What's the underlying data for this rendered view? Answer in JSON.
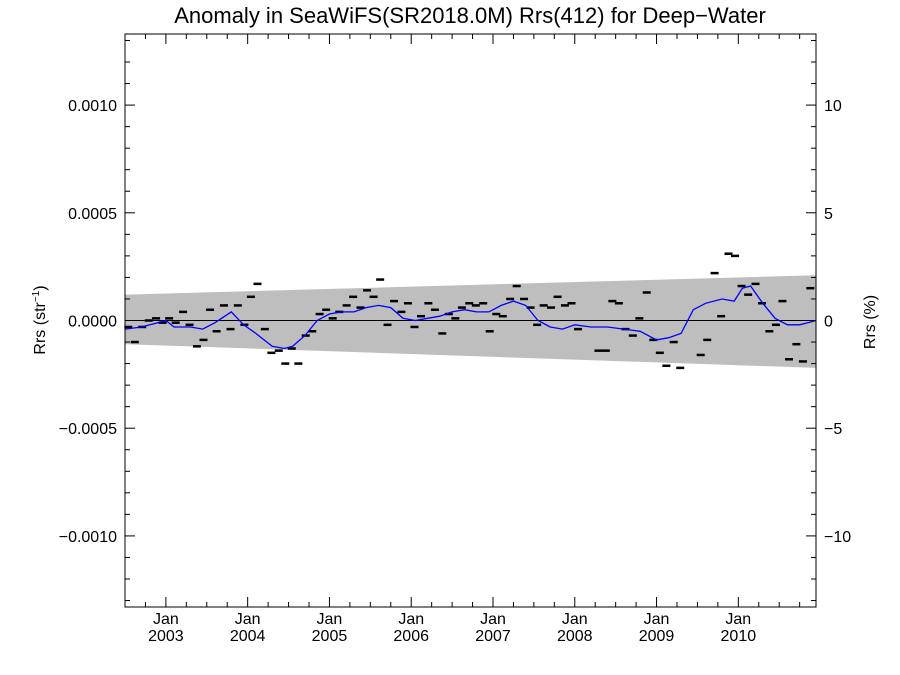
{
  "chart_data": {
    "type": "scatter",
    "title": "Anomaly in SeaWiFS(SR2018.0M) Rrs(412) for Deep−Water",
    "ylabel_left_main": "Rrs (str",
    "ylabel_left_sup": "−1",
    "ylabel_left_close": ")",
    "ylabel_right": "Rrs (%)",
    "x_start": 2002.5,
    "x_end": 2010.95,
    "ylim": [
      -0.00133,
      0.00133
    ],
    "y2lim": [
      -13.3,
      13.3
    ],
    "left_ticks": [
      {
        "value": 0.001,
        "label": "0.0010"
      },
      {
        "value": 0.0005,
        "label": "0.0005"
      },
      {
        "value": 0.0,
        "label": "0.0000"
      },
      {
        "value": -0.0005,
        "label": "−0.0005"
      },
      {
        "value": -0.001,
        "label": "−0.0010"
      }
    ],
    "right_ticks": [
      {
        "value": 10,
        "label": "10"
      },
      {
        "value": 5,
        "label": "5"
      },
      {
        "value": 0,
        "label": "0"
      },
      {
        "value": -5,
        "label": "−5"
      },
      {
        "value": -10,
        "label": "−10"
      }
    ],
    "x_ticks": [
      {
        "value": 2003.0,
        "month": "Jan",
        "year": "2003"
      },
      {
        "value": 2004.0,
        "month": "Jan",
        "year": "2004"
      },
      {
        "value": 2005.0,
        "month": "Jan",
        "year": "2005"
      },
      {
        "value": 2006.0,
        "month": "Jan",
        "year": "2006"
      },
      {
        "value": 2007.0,
        "month": "Jan",
        "year": "2007"
      },
      {
        "value": 2008.0,
        "month": "Jan",
        "year": "2008"
      },
      {
        "value": 2009.0,
        "month": "Jan",
        "year": "2009"
      },
      {
        "value": 2010.0,
        "month": "Jan",
        "year": "2010"
      }
    ],
    "band": {
      "x": [
        2002.5,
        2010.95
      ],
      "upper": [
        0.00012,
        0.00021
      ],
      "lower": [
        -0.00011,
        -0.00022
      ]
    },
    "points": {
      "name": "monthly anomaly",
      "x": [
        2002.54,
        2002.62,
        2002.71,
        2002.79,
        2002.88,
        2002.96,
        2003.04,
        2003.12,
        2003.21,
        2003.29,
        2003.38,
        2003.46,
        2003.54,
        2003.62,
        2003.71,
        2003.79,
        2003.88,
        2003.96,
        2004.04,
        2004.12,
        2004.21,
        2004.29,
        2004.38,
        2004.46,
        2004.54,
        2004.62,
        2004.71,
        2004.79,
        2004.88,
        2004.96,
        2005.04,
        2005.12,
        2005.21,
        2005.29,
        2005.38,
        2005.46,
        2005.54,
        2005.62,
        2005.71,
        2005.79,
        2005.88,
        2005.96,
        2006.04,
        2006.12,
        2006.21,
        2006.29,
        2006.38,
        2006.46,
        2006.54,
        2006.62,
        2006.71,
        2006.79,
        2006.88,
        2006.96,
        2007.04,
        2007.12,
        2007.21,
        2007.29,
        2007.38,
        2007.46,
        2007.54,
        2007.62,
        2007.71,
        2007.79,
        2007.88,
        2007.96,
        2008.04,
        2008.29,
        2008.38,
        2008.46,
        2008.54,
        2008.62,
        2008.71,
        2008.79,
        2008.88,
        2008.96,
        2009.04,
        2009.12,
        2009.21,
        2009.29,
        2009.54,
        2009.62,
        2009.71,
        2009.79,
        2009.88,
        2009.96,
        2010.04,
        2010.12,
        2010.21,
        2010.29,
        2010.38,
        2010.46,
        2010.54,
        2010.62,
        2010.71,
        2010.79,
        2010.88
      ],
      "y": [
        -3e-05,
        -0.0001,
        -3e-05,
        0.0,
        1e-05,
        -1e-05,
        1e-05,
        -1e-05,
        4e-05,
        -2e-05,
        -0.00012,
        -9e-05,
        5e-05,
        -5e-05,
        7e-05,
        -4e-05,
        7e-05,
        -2e-05,
        0.00011,
        0.00017,
        -4e-05,
        -0.00015,
        -0.00014,
        -0.0002,
        -0.00013,
        -0.0002,
        -7e-05,
        -5e-05,
        3e-05,
        5e-05,
        1e-05,
        4e-05,
        7e-05,
        0.00011,
        6e-05,
        0.00014,
        0.00011,
        0.00019,
        -2e-05,
        9e-05,
        4e-05,
        8e-05,
        -3e-05,
        2e-05,
        8e-05,
        5e-05,
        -6e-05,
        3e-05,
        1e-05,
        6e-05,
        8e-05,
        7e-05,
        8e-05,
        -5e-05,
        3e-05,
        2e-05,
        0.0001,
        0.00016,
        0.0001,
        6e-05,
        -2e-05,
        7e-05,
        6e-05,
        0.00011,
        7e-05,
        8e-05,
        -4e-05,
        -0.00014,
        -0.00014,
        9e-05,
        8e-05,
        -4e-05,
        -7e-05,
        1e-05,
        0.00013,
        -9e-05,
        -0.00015,
        -0.00021,
        -0.0001,
        -0.00022,
        -0.00016,
        -9e-05,
        0.00022,
        2e-05,
        0.00031,
        0.0003,
        0.00016,
        0.00012,
        0.00017,
        8e-05,
        -5e-05,
        -2e-05,
        9e-05,
        -0.00018,
        -0.00011,
        -0.00019,
        0.00015
      ]
    },
    "series": [
      {
        "name": "running mean",
        "x": [
          2002.5,
          2002.7,
          2002.9,
          2003.0,
          2003.1,
          2003.3,
          2003.45,
          2003.6,
          2003.8,
          2003.95,
          2004.1,
          2004.3,
          2004.45,
          2004.55,
          2004.7,
          2004.85,
          2005.0,
          2005.15,
          2005.3,
          2005.45,
          2005.6,
          2005.75,
          2005.9,
          2006.05,
          2006.2,
          2006.35,
          2006.5,
          2006.65,
          2006.8,
          2006.95,
          2007.1,
          2007.25,
          2007.4,
          2007.55,
          2007.7,
          2007.85,
          2008.0,
          2008.2,
          2008.4,
          2008.6,
          2008.8,
          2009.0,
          2009.15,
          2009.3,
          2009.45,
          2009.6,
          2009.8,
          2009.95,
          2010.05,
          2010.15,
          2010.3,
          2010.45,
          2010.6,
          2010.75,
          2010.85,
          2010.95
        ],
        "y": [
          -4e-05,
          -3e-05,
          -1e-05,
          0.0,
          -3e-05,
          -3e-05,
          -4e-05,
          -1e-05,
          4e-05,
          -2e-05,
          -6e-05,
          -0.00012,
          -0.00013,
          -0.00012,
          -7e-05,
          0.0,
          3e-05,
          4e-05,
          4e-05,
          6e-05,
          7e-05,
          6e-05,
          1e-05,
          0.0,
          1e-05,
          2e-05,
          4e-05,
          5e-05,
          4e-05,
          4e-05,
          7e-05,
          9e-05,
          7e-05,
          0.0,
          -3e-05,
          -4e-05,
          -2e-05,
          -3e-05,
          -3e-05,
          -4e-05,
          -5e-05,
          -9e-05,
          -8e-05,
          -6e-05,
          5e-05,
          8e-05,
          0.0001,
          9e-05,
          0.00015,
          0.00016,
          8e-05,
          1e-05,
          -2e-05,
          -2e-05,
          -1e-05,
          0.0
        ]
      }
    ],
    "colors": {
      "band": "#bebebe",
      "line": "#0000ff",
      "points": "#000000",
      "axes": "#000000"
    },
    "grid": false,
    "legend": "none"
  }
}
